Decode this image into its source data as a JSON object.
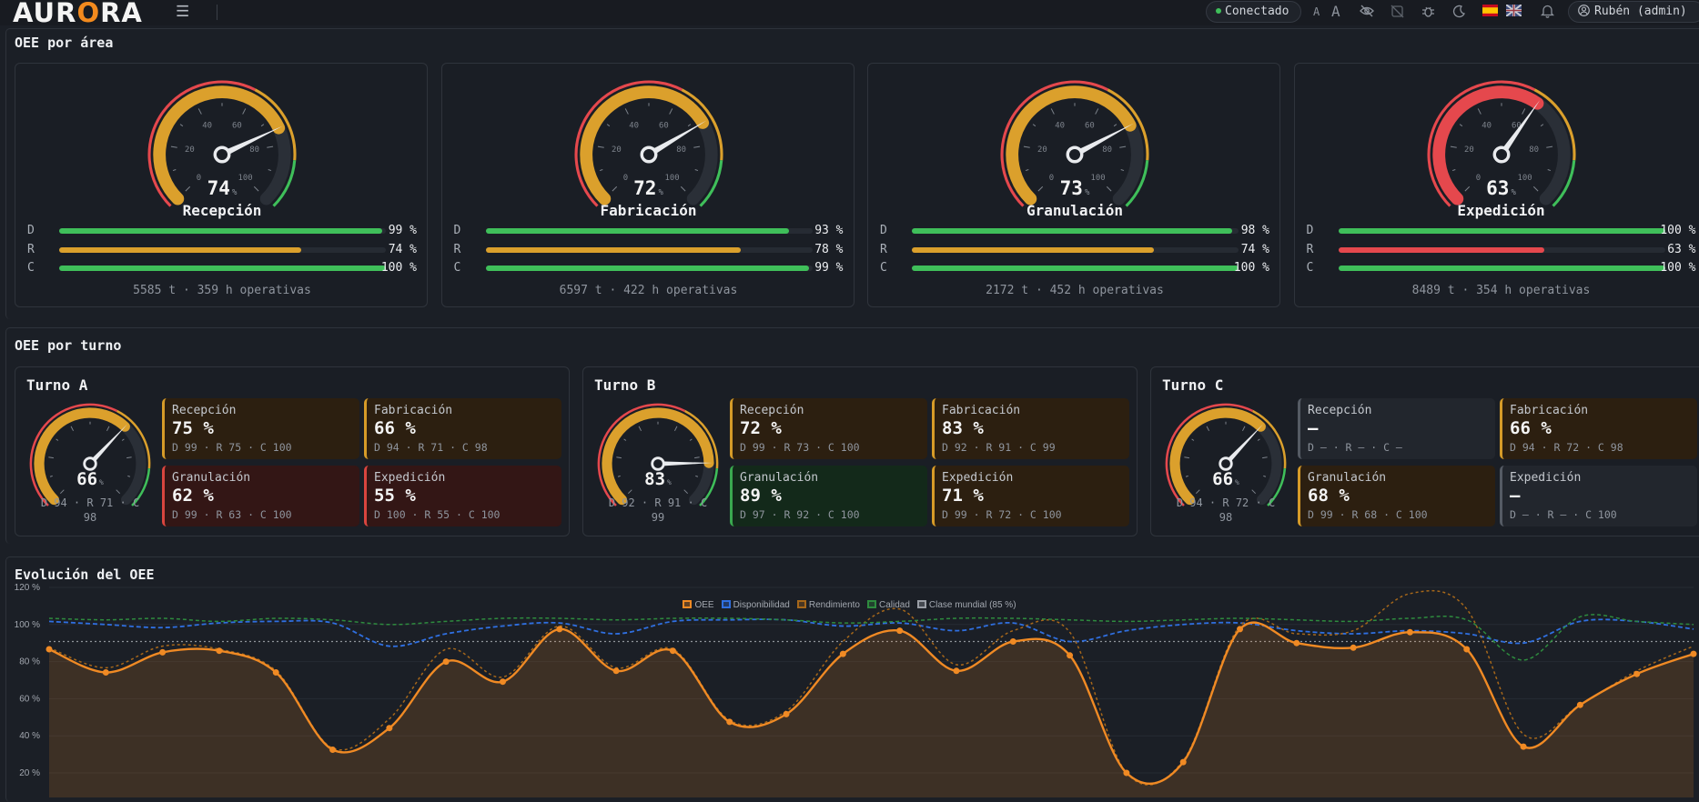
{
  "app": {
    "logo": {
      "pre": "AUR",
      "o": "O",
      "post": "RA"
    },
    "status": "Conectado",
    "font_small": "A",
    "font_large": "A",
    "user": "Rubén (admin)"
  },
  "sections": {
    "areas_title": "OEE por área",
    "shifts_title": "OEE por turno",
    "evolution_title": "Evolución del OEE"
  },
  "colors": {
    "good": "#3fbf5a",
    "warn": "#dba02c",
    "bad": "#e5484d"
  },
  "areas": [
    {
      "name": "Recepción",
      "oee": "74",
      "unit": "%",
      "oee_value": 74,
      "rows": [
        {
          "label": "D",
          "value": "99 %",
          "pct": 99,
          "color": "#3fbf5a"
        },
        {
          "label": "R",
          "value": "74 %",
          "pct": 74,
          "color": "#dba02c"
        },
        {
          "label": "C",
          "value": "100 %",
          "pct": 100,
          "color": "#3fbf5a"
        }
      ],
      "footer": "5585 t · 359 h operativas"
    },
    {
      "name": "Fabricación",
      "oee": "72",
      "unit": "%",
      "oee_value": 72,
      "rows": [
        {
          "label": "D",
          "value": "93 %",
          "pct": 93,
          "color": "#3fbf5a"
        },
        {
          "label": "R",
          "value": "78 %",
          "pct": 78,
          "color": "#dba02c"
        },
        {
          "label": "C",
          "value": "99 %",
          "pct": 99,
          "color": "#3fbf5a"
        }
      ],
      "footer": "6597 t · 422 h operativas"
    },
    {
      "name": "Granulación",
      "oee": "73",
      "unit": "%",
      "oee_value": 73,
      "rows": [
        {
          "label": "D",
          "value": "98 %",
          "pct": 98,
          "color": "#3fbf5a"
        },
        {
          "label": "R",
          "value": "74 %",
          "pct": 74,
          "color": "#dba02c"
        },
        {
          "label": "C",
          "value": "100 %",
          "pct": 100,
          "color": "#3fbf5a"
        }
      ],
      "footer": "2172 t · 452 h operativas"
    },
    {
      "name": "Expedición",
      "oee": "63",
      "unit": "%",
      "oee_value": 63,
      "rows": [
        {
          "label": "D",
          "value": "100 %",
          "pct": 100,
          "color": "#3fbf5a"
        },
        {
          "label": "R",
          "value": "63 %",
          "pct": 63,
          "color": "#e5484d"
        },
        {
          "label": "C",
          "value": "100 %",
          "pct": 100,
          "color": "#3fbf5a"
        }
      ],
      "footer": "8489 t · 354 h operativas"
    }
  ],
  "gauge_ticks": [
    "0",
    "20",
    "40",
    "60",
    "80",
    "100"
  ],
  "shifts": [
    {
      "name": "Turno A",
      "oee": "66",
      "unit": "%",
      "oee_value": 66,
      "sub": "D 94 · R 71 · C 98",
      "tiles": [
        {
          "name": "Recepción",
          "value": "75 %",
          "metrics": "D 99 · R 75 · C 100",
          "tone": "amber"
        },
        {
          "name": "Fabricación",
          "value": "66 %",
          "metrics": "D 94 · R 71 · C 98",
          "tone": "amber"
        },
        {
          "name": "Granulación",
          "value": "62 %",
          "metrics": "D 99 · R 63 · C 100",
          "tone": "red"
        },
        {
          "name": "Expedición",
          "value": "55 %",
          "metrics": "D 100 · R 55 · C 100",
          "tone": "red"
        }
      ]
    },
    {
      "name": "Turno B",
      "oee": "83",
      "unit": "%",
      "oee_value": 83,
      "sub": "D 92 · R 91 · C 99",
      "tiles": [
        {
          "name": "Recepción",
          "value": "72 %",
          "metrics": "D 99 · R 73 · C 100",
          "tone": "amber"
        },
        {
          "name": "Fabricación",
          "value": "83 %",
          "metrics": "D 92 · R 91 · C 99",
          "tone": "amber"
        },
        {
          "name": "Granulación",
          "value": "89 %",
          "metrics": "D 97 · R 92 · C 100",
          "tone": "green"
        },
        {
          "name": "Expedición",
          "value": "71 %",
          "metrics": "D 99 · R 72 · C 100",
          "tone": "amber"
        }
      ]
    },
    {
      "name": "Turno C",
      "oee": "66",
      "unit": "%",
      "oee_value": 66,
      "sub": "D 94 · R 72 · C 98",
      "tiles": [
        {
          "name": "Recepción",
          "value": "—",
          "metrics": "D — · R — · C —",
          "tone": "grey"
        },
        {
          "name": "Fabricación",
          "value": "66 %",
          "metrics": "D 94 · R 72 · C 98",
          "tone": "amber"
        },
        {
          "name": "Granulación",
          "value": "68 %",
          "metrics": "D 99 · R 68 · C 100",
          "tone": "amber"
        },
        {
          "name": "Expedición",
          "value": "—",
          "metrics": "D — · R — · C 100",
          "tone": "grey"
        }
      ]
    }
  ],
  "chart_data": {
    "type": "line",
    "legend": [
      {
        "name": "OEE",
        "color": "#f08a24"
      },
      {
        "name": "Disponibilidad",
        "color": "#2f6fe0"
      },
      {
        "name": "Rendimiento",
        "color": "#a6671a"
      },
      {
        "name": "Calidad",
        "color": "#2e8b3e"
      },
      {
        "name": "Clase mundial (85 %)",
        "color": "#9a9ea6"
      }
    ],
    "y_ticks": [
      "120 %",
      "100 %",
      "80 %",
      "60 %",
      "40 %",
      "20 %"
    ],
    "ylim": [
      0,
      120
    ],
    "world_class": 85,
    "series": [
      {
        "name": "OEE",
        "values": [
          80,
          65,
          78,
          79,
          65,
          15,
          29,
          72,
          59,
          93,
          66,
          79,
          33,
          38,
          77,
          92,
          66,
          85,
          76,
          0,
          7,
          93,
          84,
          81,
          91,
          80,
          17,
          44,
          64,
          77
        ]
      },
      {
        "name": "Disponibilidad",
        "values": [
          98,
          96,
          94,
          97,
          98,
          97,
          82,
          90,
          95,
          97,
          90,
          98,
          99,
          99,
          95,
          97,
          92,
          97,
          85,
          92,
          96,
          97,
          92,
          90,
          92,
          90,
          84,
          98,
          98,
          93
        ]
      },
      {
        "name": "Rendimiento",
        "values": [
          81,
          68,
          82,
          80,
          66,
          16,
          35,
          80,
          62,
          95,
          68,
          80,
          34,
          40,
          85,
          106,
          70,
          92,
          91,
          0,
          8,
          95,
          90,
          92,
          116,
          106,
          25,
          44,
          66,
          82
        ]
      },
      {
        "name": "Calidad",
        "values": [
          100,
          99,
          100,
          98,
          100,
          99,
          96,
          98,
          100,
          100,
          99,
          100,
          100,
          99,
          97,
          98,
          100,
          100,
          99,
          98,
          99,
          100,
          99,
          98,
          100,
          99,
          73,
          101,
          98,
          96
        ]
      }
    ]
  }
}
